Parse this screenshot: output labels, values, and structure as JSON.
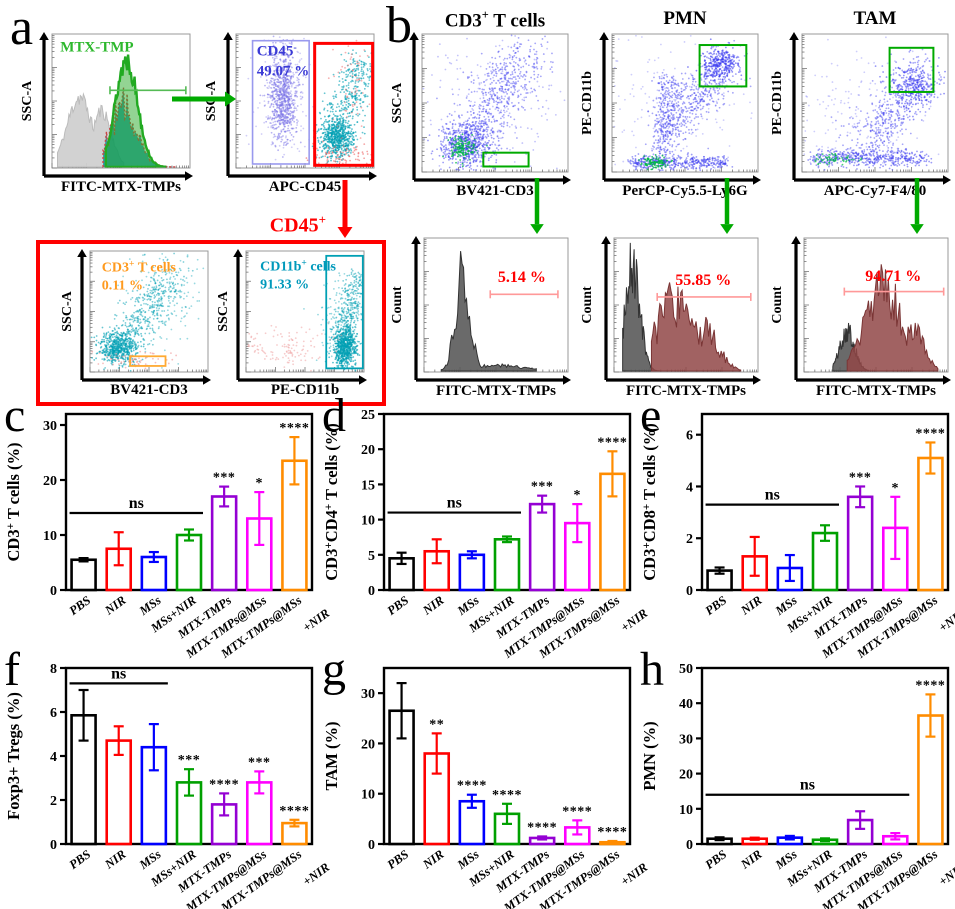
{
  "panels": {
    "a": {
      "label": "a",
      "cd45_pos": "CD45^+"
    },
    "b": {
      "label": "b"
    }
  },
  "flow_plots": {
    "a1": {
      "ylabel": "SSC-A",
      "xlabel": "FITC-MTX-TMPs",
      "legend": "MTX-TMP"
    },
    "a2": {
      "ylabel": "SSC-A",
      "xlabel": "APC-CD45",
      "gate_label": "CD45^-",
      "gate_pct": "49.07 %"
    },
    "a3": {
      "ylabel": "SSC-A",
      "xlabel": "BV421-CD3",
      "gate_label": "CD3^+ T cells",
      "gate_pct": "0.11 %"
    },
    "a4": {
      "ylabel": "SSC-A",
      "xlabel": "PE-CD11b",
      "gate_label": "CD11b^+ cells",
      "gate_pct": "91.33 %"
    },
    "b1": {
      "title": "CD3^+ T cells",
      "ylabel": "SSC-A",
      "xlabel": "BV421-CD3"
    },
    "b2": {
      "title": "PMN",
      "ylabel": "PE-CD11b",
      "xlabel": "PerCP-Cy5.5-Ly6G"
    },
    "b3": {
      "title": "TAM",
      "ylabel": "PE-CD11b",
      "xlabel": "APC-Cy7-F4/80"
    },
    "b4": {
      "ylabel": "Count",
      "xlabel": "FITC-MTX-TMPs",
      "pct": "5.14 %"
    },
    "b5": {
      "ylabel": "Count",
      "xlabel": "FITC-MTX-TMPs",
      "pct": "55.85 %"
    },
    "b6": {
      "ylabel": "Count",
      "xlabel": "FITC-MTX-TMPs",
      "pct": "94.71 %"
    }
  },
  "bar_colors": [
    "#000000",
    "#ff0000",
    "#0000ff",
    "#00a000",
    "#9400d3",
    "#ff00ff",
    "#ff8c00"
  ],
  "colors": {
    "green": "#00aa00",
    "red": "#ff0000",
    "teal": "#00a0b4",
    "violet_dots": "#7b74e8",
    "blue_dots": "#3a3af0",
    "green_core": "#00bb44",
    "maroon_fill": "rgba(145,70,70,0.85)",
    "gray_fill": "rgba(90,90,90,0.9)",
    "light_gray_fill": "rgba(208,208,208,0.95)",
    "label_blue": "#3b3bd6",
    "label_orange": "#ff9a1e",
    "label_teal": "#0099bb",
    "pink": "#ee8888",
    "gate_blue": "#9999ee",
    "bracket_pink": "#ff9999",
    "bracket_green": "#55bb55"
  },
  "chart_data": [
    {
      "panel": "c",
      "type": "bar",
      "ylabel": "CD3^+ T cells (%)",
      "ylim": [
        0,
        32
      ],
      "yticks": [
        0,
        10,
        20,
        30
      ],
      "categories": [
        "PBS",
        "NIR",
        "MSs",
        "MSs+NIR",
        "MTX-TMPs",
        "MTX-TMPs@MSs",
        "MTX-TMPs@MSs\n+NIR"
      ],
      "values": [
        5.5,
        7.5,
        6,
        10,
        17,
        13,
        23.5
      ],
      "errors": [
        0.3,
        3,
        0.9,
        1,
        1.8,
        4.8,
        4.3
      ],
      "sig": [
        "",
        "",
        "",
        "",
        "***",
        "*",
        "****"
      ],
      "ns": {
        "from": 0,
        "to": 3,
        "y": 14,
        "label": "ns"
      }
    },
    {
      "panel": "d",
      "type": "bar",
      "ylabel": "CD3^+CD4^+ T cells (%)",
      "ylim": [
        0,
        25
      ],
      "yticks": [
        0,
        5,
        10,
        15,
        20,
        25
      ],
      "categories": [
        "PBS",
        "NIR",
        "MSs",
        "MSs+NIR",
        "MTX-TMPs",
        "MTX-TMPs@MSs",
        "MTX-TMPs@MSs\n+NIR"
      ],
      "values": [
        4.5,
        5.5,
        5,
        7.2,
        12.2,
        9.5,
        16.5
      ],
      "errors": [
        0.8,
        1.7,
        0.5,
        0.4,
        1.2,
        2.7,
        3.2
      ],
      "sig": [
        "",
        "",
        "",
        "",
        "***",
        "*",
        "****"
      ],
      "ns": {
        "from": 0,
        "to": 3,
        "y": 11,
        "label": "ns"
      }
    },
    {
      "panel": "e",
      "type": "bar",
      "ylabel": "CD3^+CD8^+ T cells (%)",
      "ylim": [
        0,
        6.8
      ],
      "yticks": [
        0,
        2,
        4,
        6
      ],
      "categories": [
        "PBS",
        "NIR",
        "MSs",
        "MSs+NIR",
        "MTX-TMPs",
        "MTX-TMPs@MSs",
        "MTX-TMPs@MSs\n+NIR"
      ],
      "values": [
        0.75,
        1.3,
        0.85,
        2.2,
        3.6,
        2.4,
        5.1
      ],
      "errors": [
        0.12,
        0.75,
        0.5,
        0.3,
        0.4,
        1.2,
        0.6
      ],
      "sig": [
        "",
        "",
        "",
        "",
        "***",
        "*",
        "****"
      ],
      "ns": {
        "from": 0,
        "to": 3,
        "y": 3.3,
        "label": "ns"
      }
    },
    {
      "panel": "f",
      "type": "bar",
      "ylabel": "Foxp3+ Tregs (%)",
      "ylim": [
        0,
        8
      ],
      "yticks": [
        0,
        2,
        4,
        6,
        8
      ],
      "categories": [
        "PBS",
        "NIR",
        "MSs",
        "MSs+NIR",
        "MTX-TMPs",
        "MTX-TMPs@MSs",
        "MTX-TMPs@MSs\n+NIR"
      ],
      "values": [
        5.85,
        4.7,
        4.4,
        2.8,
        1.8,
        2.8,
        0.95
      ],
      "errors": [
        1.15,
        0.65,
        1.05,
        0.6,
        0.5,
        0.5,
        0.15
      ],
      "sig": [
        "",
        "",
        "",
        "***",
        "****",
        "***",
        "****"
      ],
      "ns": {
        "from": 0,
        "to": 2,
        "y": 7.3,
        "label": "ns"
      }
    },
    {
      "panel": "g",
      "type": "bar",
      "ylabel": "TAM (%)",
      "ylim": [
        0,
        35
      ],
      "yticks": [
        0,
        10,
        20,
        30
      ],
      "categories": [
        "PBS",
        "NIR",
        "MSs",
        "MSs+NIR",
        "MTX-TMPs",
        "MTX-TMPs@MSs",
        "MTX-TMPs@MSs\n+NIR"
      ],
      "values": [
        26.5,
        18,
        8.5,
        6,
        1.2,
        3.3,
        0.35
      ],
      "errors": [
        5.5,
        4,
        1.3,
        2,
        0.3,
        1.4,
        0.25
      ],
      "sig": [
        "",
        "**",
        "****",
        "****",
        "****",
        "****",
        "****"
      ],
      "ns": null
    },
    {
      "panel": "h",
      "type": "bar",
      "ylabel": "PMN (%)",
      "ylim": [
        0,
        50
      ],
      "yticks": [
        0,
        10,
        20,
        30,
        40,
        50
      ],
      "categories": [
        "PBS",
        "NIR",
        "MSs",
        "MSs+NIR",
        "MTX-TMPs",
        "MTX-TMPs@MSs",
        "MTX-TMPs@MSs\n+NIR"
      ],
      "values": [
        1.5,
        1.5,
        1.8,
        1.2,
        6.8,
        2.2,
        36.5
      ],
      "errors": [
        0.4,
        0.3,
        0.5,
        0.4,
        2.5,
        0.9,
        6
      ],
      "sig": [
        "",
        "",
        "",
        "",
        "",
        "",
        "****"
      ],
      "ns": {
        "from": 0,
        "to": 5,
        "y": 14,
        "label": "ns"
      }
    }
  ]
}
